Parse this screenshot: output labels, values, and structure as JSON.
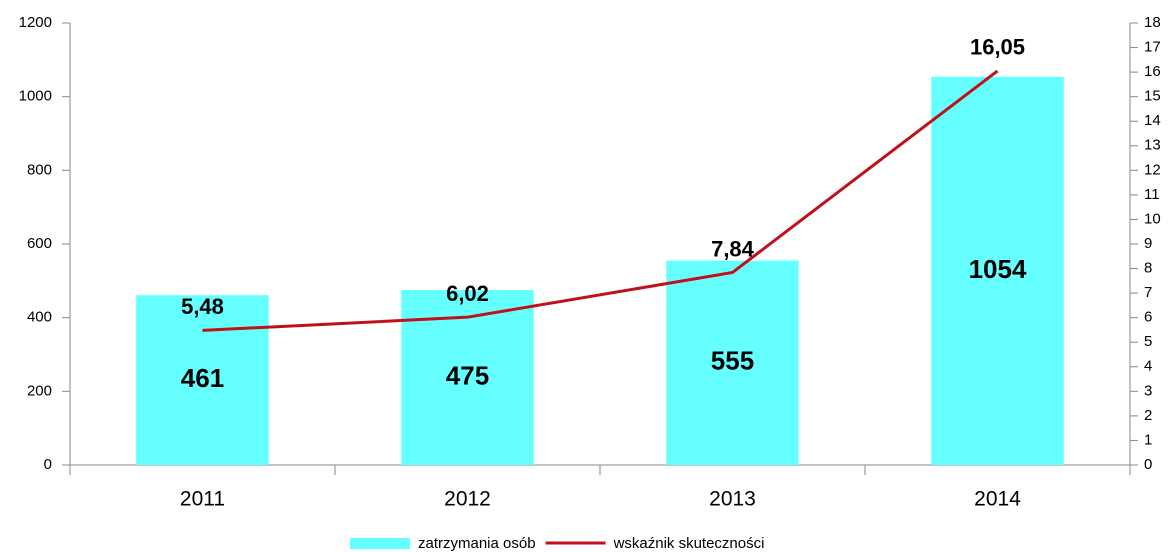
{
  "chart_data": {
    "type": "combo",
    "categories": [
      "2011",
      "2012",
      "2013",
      "2014"
    ],
    "series": [
      {
        "name": "zatrzymania osób",
        "type": "bar",
        "color": "#66ffff",
        "values": [
          461,
          475,
          555,
          1054
        ]
      },
      {
        "name": "wskaźnik skuteczności",
        "type": "line",
        "axis": "y2",
        "color": "#c0101a",
        "values": [
          5.48,
          6.02,
          7.84,
          16.05
        ],
        "value_labels": [
          "5,48",
          "6,02",
          "7,84",
          "16,05"
        ]
      }
    ],
    "ylim": [
      0,
      1200
    ],
    "yticks": [
      0,
      200,
      400,
      600,
      800,
      1000,
      1200
    ],
    "y2lim": [
      0,
      18
    ],
    "y2ticks": [
      0,
      1,
      2,
      3,
      4,
      5,
      6,
      7,
      8,
      9,
      10,
      11,
      12,
      13,
      14,
      15,
      16,
      17,
      18
    ],
    "legend": "bottom"
  }
}
